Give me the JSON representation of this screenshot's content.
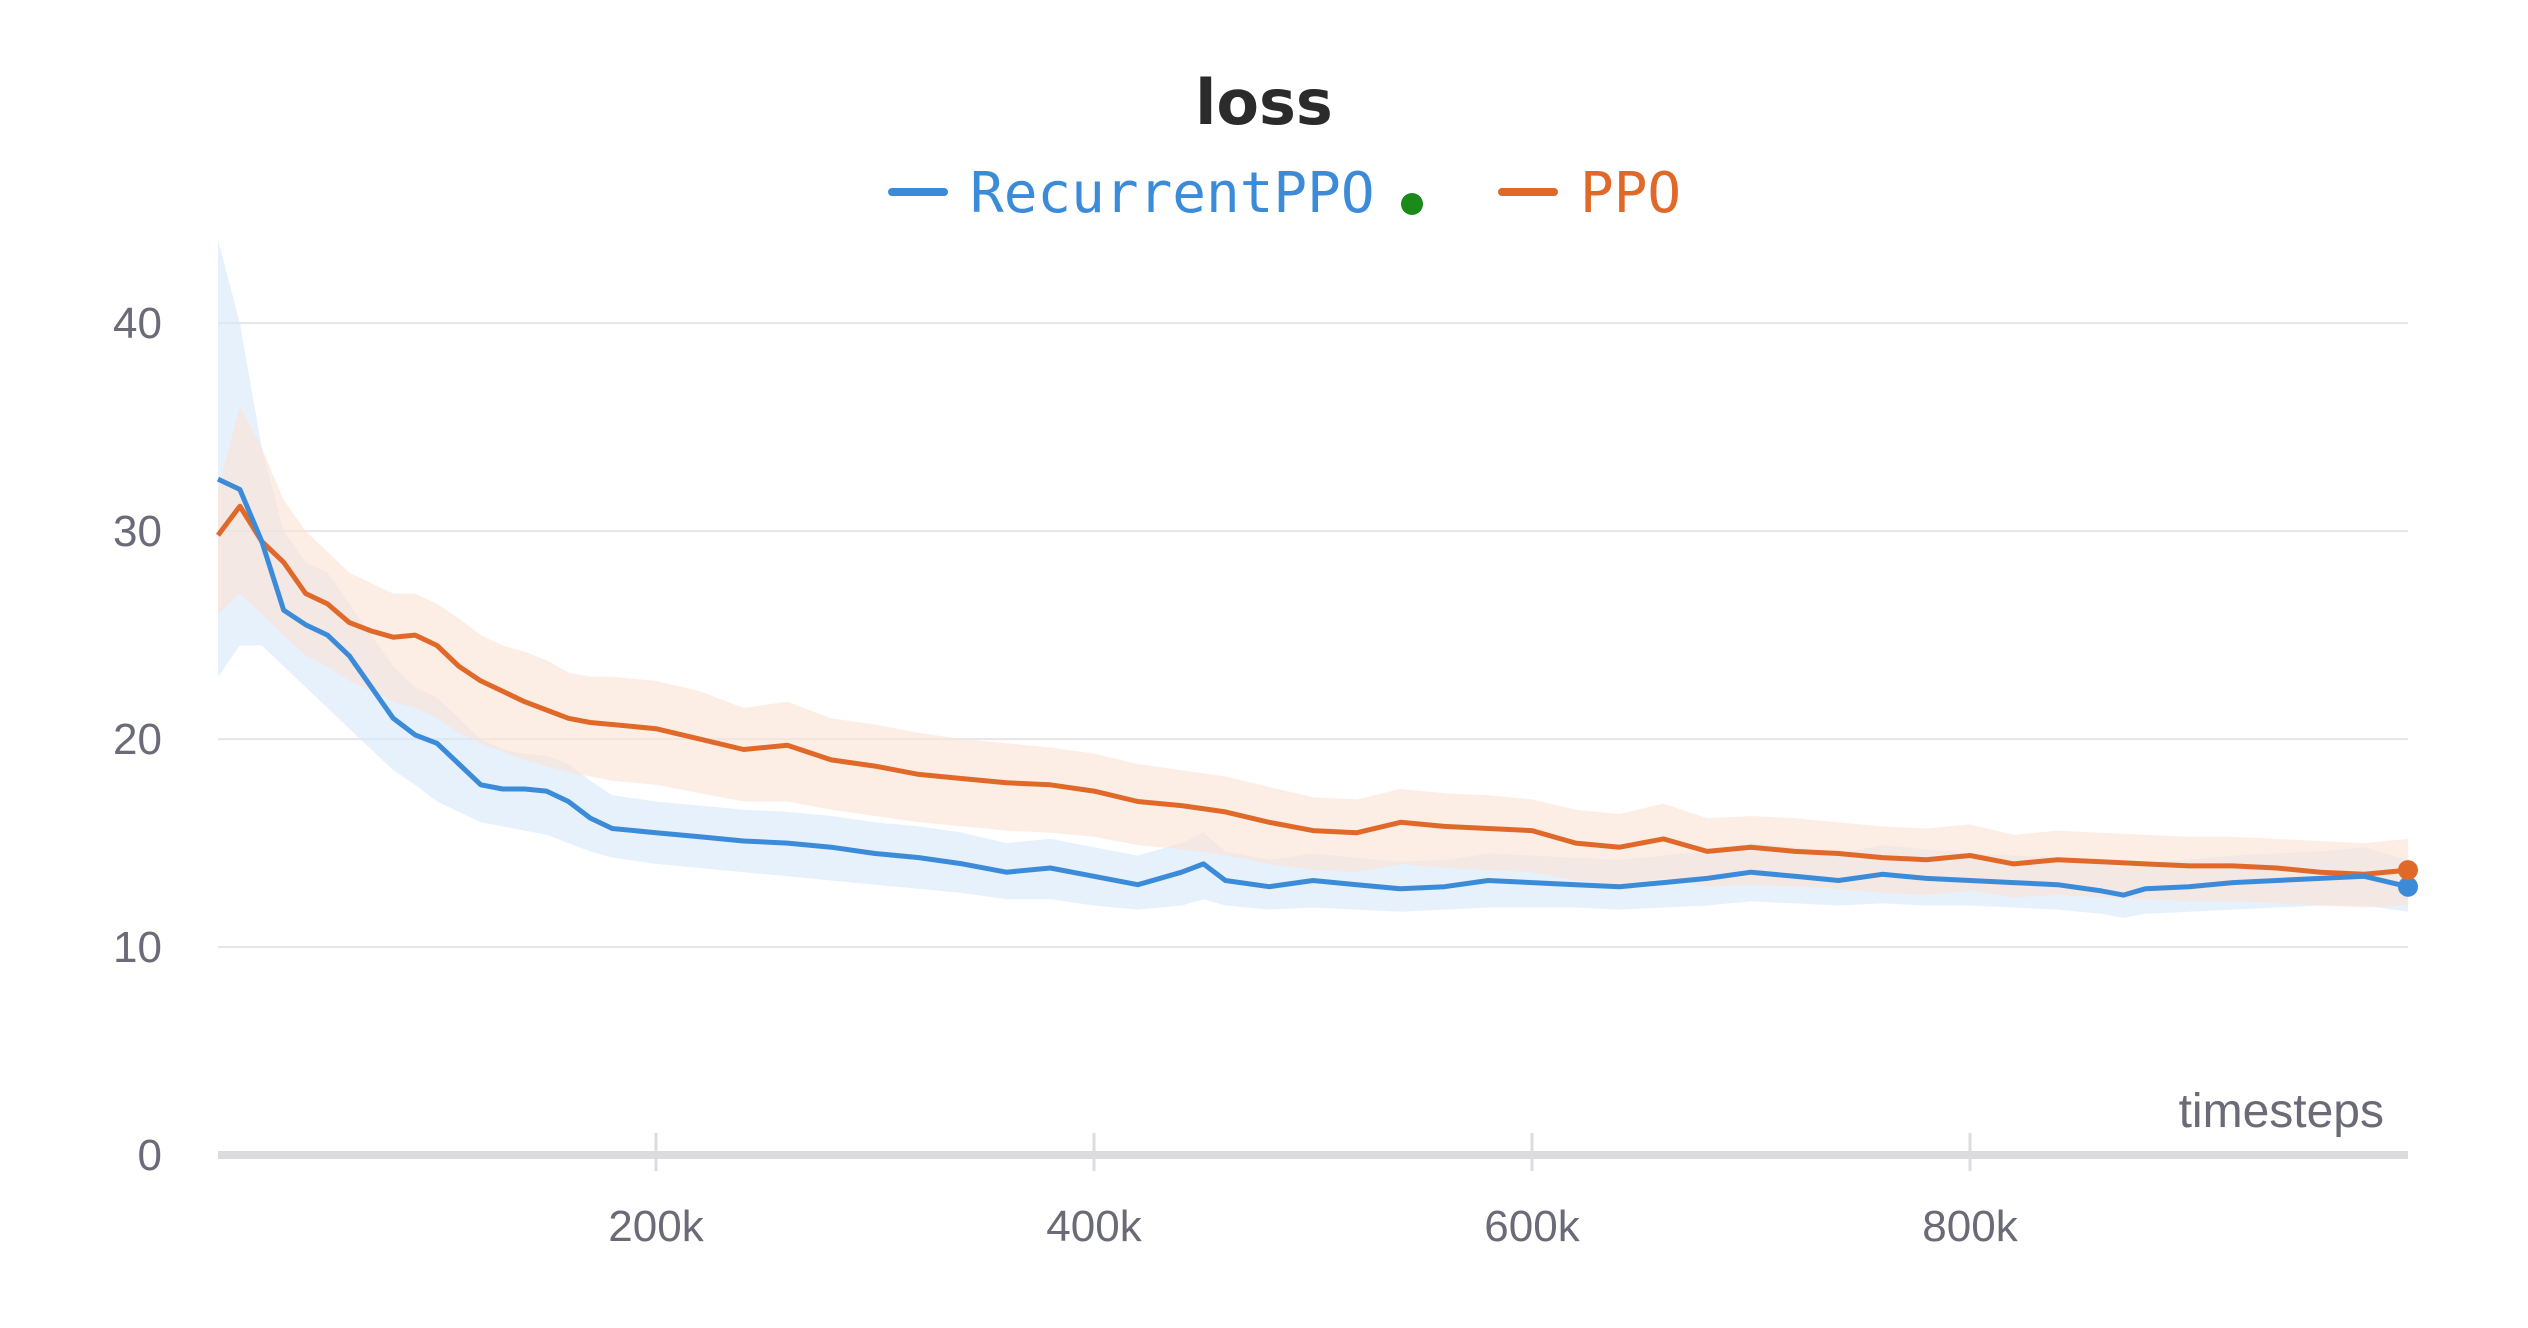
{
  "chart_data": {
    "type": "line",
    "title": "loss",
    "xlabel": "timesteps",
    "ylabel": "",
    "xlim": [
      0,
      1000000
    ],
    "ylim": [
      0,
      44
    ],
    "x_ticks": [
      200000,
      400000,
      600000,
      800000
    ],
    "x_tick_labels": [
      "200k",
      "400k",
      "600k",
      "800k"
    ],
    "y_ticks": [
      0,
      10,
      20,
      30,
      40
    ],
    "y_tick_labels": [
      "0",
      "10",
      "20",
      "30",
      "40"
    ],
    "grid": "horizontal",
    "legend_position": "top-center",
    "series": [
      {
        "name": "RecurrentPPO",
        "color": "#3b8bd9",
        "band_color": "#d6e8fa",
        "status_dot_color": "#1a8a1a",
        "x": [
          0,
          10000,
          20000,
          30000,
          40000,
          50000,
          60000,
          70000,
          80000,
          90000,
          100000,
          110000,
          120000,
          130000,
          140000,
          150000,
          160000,
          170000,
          180000,
          200000,
          220000,
          240000,
          260000,
          280000,
          300000,
          320000,
          340000,
          360000,
          380000,
          400000,
          420000,
          440000,
          450000,
          460000,
          480000,
          500000,
          520000,
          540000,
          560000,
          580000,
          600000,
          620000,
          640000,
          660000,
          680000,
          700000,
          720000,
          740000,
          760000,
          780000,
          800000,
          820000,
          840000,
          860000,
          870000,
          880000,
          900000,
          920000,
          940000,
          960000,
          980000,
          1000000
        ],
        "y": [
          32.5,
          32.0,
          29.5,
          26.2,
          25.5,
          25.0,
          24.0,
          22.5,
          21.0,
          20.2,
          19.8,
          18.8,
          17.8,
          17.6,
          17.6,
          17.5,
          17.0,
          16.2,
          15.7,
          15.5,
          15.3,
          15.1,
          15.0,
          14.8,
          14.5,
          14.3,
          14.0,
          13.6,
          13.8,
          13.4,
          13.0,
          13.6,
          14.0,
          13.2,
          12.9,
          13.2,
          13.0,
          12.8,
          12.9,
          13.2,
          13.1,
          13.0,
          12.9,
          13.1,
          13.3,
          13.6,
          13.4,
          13.2,
          13.5,
          13.3,
          13.2,
          13.1,
          13.0,
          12.7,
          12.5,
          12.8,
          12.9,
          13.1,
          13.2,
          13.3,
          13.4,
          12.9
        ],
        "lower": [
          23.0,
          24.5,
          24.5,
          23.5,
          22.5,
          21.5,
          20.5,
          19.5,
          18.5,
          17.8,
          17.0,
          16.5,
          16.0,
          15.8,
          15.6,
          15.4,
          15.0,
          14.6,
          14.3,
          14.0,
          13.8,
          13.6,
          13.4,
          13.2,
          13.0,
          12.8,
          12.6,
          12.3,
          12.3,
          12.0,
          11.8,
          12.0,
          12.3,
          12.0,
          11.8,
          11.9,
          11.8,
          11.7,
          11.8,
          11.9,
          11.9,
          11.9,
          11.8,
          11.9,
          12.0,
          12.2,
          12.1,
          12.0,
          12.1,
          12.0,
          12.0,
          11.9,
          11.8,
          11.6,
          11.4,
          11.6,
          11.7,
          11.8,
          11.9,
          12.0,
          12.0,
          11.7
        ],
        "upper": [
          44.0,
          40.0,
          34.0,
          30.0,
          28.5,
          28.0,
          26.5,
          25.0,
          23.5,
          22.5,
          22.0,
          21.0,
          20.0,
          19.5,
          19.3,
          19.2,
          18.8,
          18.0,
          17.3,
          17.0,
          16.8,
          16.6,
          16.5,
          16.3,
          16.0,
          15.8,
          15.5,
          15.0,
          15.2,
          14.8,
          14.4,
          15.0,
          15.5,
          14.6,
          14.2,
          14.5,
          14.3,
          14.1,
          14.2,
          14.5,
          14.4,
          14.3,
          14.2,
          14.4,
          14.6,
          15.0,
          14.8,
          14.5,
          14.9,
          14.7,
          14.5,
          14.4,
          14.3,
          14.0,
          13.8,
          14.1,
          14.2,
          14.4,
          14.5,
          14.6,
          14.8,
          14.2
        ]
      },
      {
        "name": "PPO",
        "color": "#e0692a",
        "band_color": "#fbe3d4",
        "x": [
          0,
          10000,
          20000,
          30000,
          40000,
          50000,
          60000,
          70000,
          80000,
          90000,
          100000,
          110000,
          120000,
          130000,
          140000,
          150000,
          160000,
          170000,
          180000,
          200000,
          220000,
          240000,
          260000,
          280000,
          300000,
          320000,
          340000,
          360000,
          380000,
          400000,
          420000,
          440000,
          460000,
          480000,
          500000,
          520000,
          540000,
          560000,
          580000,
          600000,
          620000,
          640000,
          660000,
          680000,
          700000,
          720000,
          740000,
          760000,
          780000,
          800000,
          820000,
          840000,
          860000,
          880000,
          900000,
          920000,
          940000,
          960000,
          980000,
          1000000
        ],
        "y": [
          29.8,
          31.2,
          29.5,
          28.5,
          27.0,
          26.5,
          25.6,
          25.2,
          24.9,
          25.0,
          24.5,
          23.5,
          22.8,
          22.3,
          21.8,
          21.4,
          21.0,
          20.8,
          20.7,
          20.5,
          20.0,
          19.5,
          19.7,
          19.0,
          18.7,
          18.3,
          18.1,
          17.9,
          17.8,
          17.5,
          17.0,
          16.8,
          16.5,
          16.0,
          15.6,
          15.5,
          16.0,
          15.8,
          15.7,
          15.6,
          15.0,
          14.8,
          15.2,
          14.6,
          14.8,
          14.6,
          14.5,
          14.3,
          14.2,
          14.4,
          14.0,
          14.2,
          14.1,
          14.0,
          13.9,
          13.9,
          13.8,
          13.6,
          13.5,
          13.7
        ],
        "lower": [
          26.0,
          27.0,
          26.0,
          25.0,
          24.0,
          23.5,
          22.8,
          22.3,
          21.8,
          21.5,
          21.0,
          20.3,
          19.8,
          19.4,
          19.0,
          18.7,
          18.4,
          18.2,
          18.0,
          17.8,
          17.4,
          17.0,
          17.0,
          16.6,
          16.3,
          16.0,
          15.8,
          15.6,
          15.5,
          15.3,
          14.9,
          14.7,
          14.4,
          14.0,
          13.7,
          13.6,
          14.0,
          13.8,
          13.7,
          13.6,
          13.2,
          13.0,
          13.3,
          12.9,
          13.0,
          12.9,
          12.8,
          12.6,
          12.5,
          12.7,
          12.4,
          12.5,
          12.4,
          12.3,
          12.2,
          12.2,
          12.1,
          12.0,
          11.9,
          12.0
        ],
        "upper": [
          32.0,
          36.0,
          34.0,
          31.5,
          30.0,
          29.0,
          28.0,
          27.5,
          27.0,
          27.0,
          26.5,
          25.8,
          25.0,
          24.5,
          24.2,
          23.8,
          23.2,
          23.0,
          23.0,
          22.8,
          22.3,
          21.5,
          21.8,
          21.0,
          20.7,
          20.3,
          20.0,
          19.8,
          19.6,
          19.3,
          18.8,
          18.5,
          18.2,
          17.7,
          17.2,
          17.1,
          17.6,
          17.4,
          17.3,
          17.1,
          16.6,
          16.4,
          16.9,
          16.2,
          16.3,
          16.2,
          16.0,
          15.8,
          15.7,
          15.9,
          15.4,
          15.6,
          15.5,
          15.4,
          15.3,
          15.3,
          15.2,
          15.1,
          15.0,
          15.2
        ]
      }
    ]
  }
}
